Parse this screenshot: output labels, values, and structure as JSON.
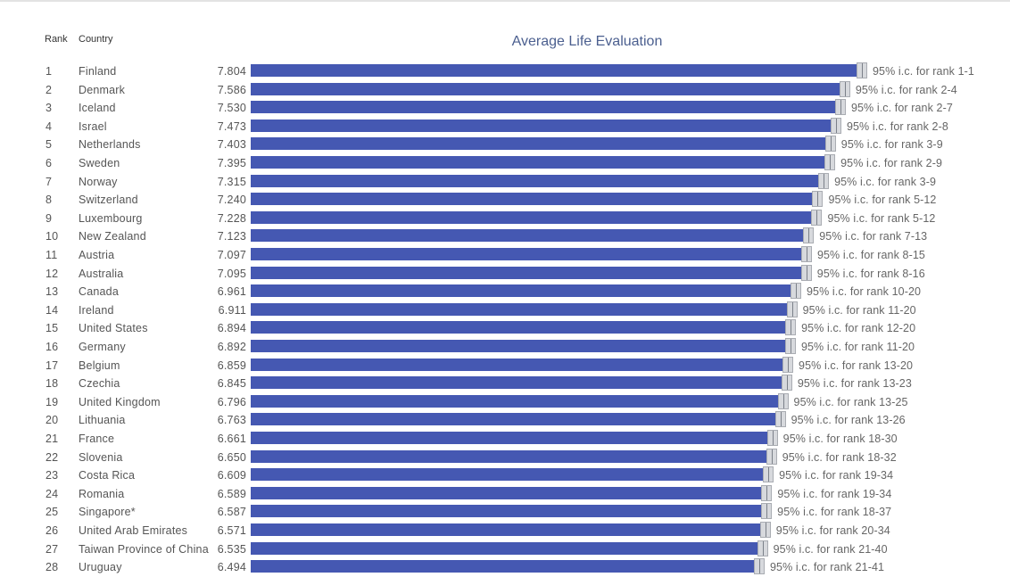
{
  "header": {
    "rank_label": "Rank",
    "country_label": "Country"
  },
  "chart_data": {
    "type": "bar",
    "orientation": "horizontal",
    "title": "Average Life Evaluation",
    "xlim": [
      0,
      7.804
    ],
    "colors": {
      "bar": "#4558b2",
      "ci_band": "#d7d9dd",
      "ci_border": "#a9acb2",
      "title": "#4b5f8f"
    },
    "rows": [
      {
        "rank": "1",
        "country": "Finland",
        "score": "7.804",
        "value": 7.804,
        "ci_label": "95% i.c. for rank 1-1"
      },
      {
        "rank": "2",
        "country": "Denmark",
        "score": "7.586",
        "value": 7.586,
        "ci_label": "95% i.c. for rank 2-4"
      },
      {
        "rank": "3",
        "country": "Iceland",
        "score": "7.530",
        "value": 7.53,
        "ci_label": "95% i.c. for rank 2-7"
      },
      {
        "rank": "4",
        "country": "Israel",
        "score": "7.473",
        "value": 7.473,
        "ci_label": "95% i.c. for rank 2-8"
      },
      {
        "rank": "5",
        "country": "Netherlands",
        "score": "7.403",
        "value": 7.403,
        "ci_label": "95% i.c. for rank 3-9"
      },
      {
        "rank": "6",
        "country": "Sweden",
        "score": "7.395",
        "value": 7.395,
        "ci_label": "95% i.c. for rank 2-9"
      },
      {
        "rank": "7",
        "country": "Norway",
        "score": "7.315",
        "value": 7.315,
        "ci_label": "95% i.c. for rank 3-9"
      },
      {
        "rank": "8",
        "country": "Switzerland",
        "score": "7.240",
        "value": 7.24,
        "ci_label": "95% i.c. for rank 5-12"
      },
      {
        "rank": "9",
        "country": "Luxembourg",
        "score": "7.228",
        "value": 7.228,
        "ci_label": "95% i.c. for rank 5-12"
      },
      {
        "rank": "10",
        "country": "New Zealand",
        "score": "7.123",
        "value": 7.123,
        "ci_label": "95% i.c. for rank 7-13"
      },
      {
        "rank": "11",
        "country": "Austria",
        "score": "7.097",
        "value": 7.097,
        "ci_label": "95% i.c. for rank 8-15"
      },
      {
        "rank": "12",
        "country": "Australia",
        "score": "7.095",
        "value": 7.095,
        "ci_label": "95% i.c. for rank 8-16"
      },
      {
        "rank": "13",
        "country": "Canada",
        "score": "6.961",
        "value": 6.961,
        "ci_label": "95% i.c. for rank 10-20"
      },
      {
        "rank": "14",
        "country": "Ireland",
        "score": "6.911",
        "value": 6.911,
        "ci_label": "95% i.c. for rank 11-20"
      },
      {
        "rank": "15",
        "country": "United States",
        "score": "6.894",
        "value": 6.894,
        "ci_label": "95% i.c. for rank 12-20"
      },
      {
        "rank": "16",
        "country": "Germany",
        "score": "6.892",
        "value": 6.892,
        "ci_label": "95% i.c. for rank 11-20"
      },
      {
        "rank": "17",
        "country": "Belgium",
        "score": "6.859",
        "value": 6.859,
        "ci_label": "95% i.c. for rank 13-20"
      },
      {
        "rank": "18",
        "country": "Czechia",
        "score": "6.845",
        "value": 6.845,
        "ci_label": "95% i.c. for rank 13-23"
      },
      {
        "rank": "19",
        "country": "United Kingdom",
        "score": "6.796",
        "value": 6.796,
        "ci_label": "95% i.c. for rank 13-25"
      },
      {
        "rank": "20",
        "country": "Lithuania",
        "score": "6.763",
        "value": 6.763,
        "ci_label": "95% i.c. for rank 13-26"
      },
      {
        "rank": "21",
        "country": "France",
        "score": "6.661",
        "value": 6.661,
        "ci_label": "95% i.c. for rank 18-30"
      },
      {
        "rank": "22",
        "country": "Slovenia",
        "score": "6.650",
        "value": 6.65,
        "ci_label": "95% i.c. for rank 18-32"
      },
      {
        "rank": "23",
        "country": "Costa Rica",
        "score": "6.609",
        "value": 6.609,
        "ci_label": "95% i.c. for rank 19-34"
      },
      {
        "rank": "24",
        "country": "Romania",
        "score": "6.589",
        "value": 6.589,
        "ci_label": "95% i.c. for rank 19-34"
      },
      {
        "rank": "25",
        "country": "Singapore*",
        "score": "6.587",
        "value": 6.587,
        "ci_label": "95% i.c. for rank 18-37"
      },
      {
        "rank": "26",
        "country": "United Arab Emirates",
        "score": "6.571",
        "value": 6.571,
        "ci_label": "95% i.c. for rank 20-34"
      },
      {
        "rank": "27",
        "country": "Taiwan Province of China",
        "score": "6.535",
        "value": 6.535,
        "ci_label": "95% i.c. for rank 21-40"
      },
      {
        "rank": "28",
        "country": "Uruguay",
        "score": "6.494",
        "value": 6.494,
        "ci_label": "95% i.c. for rank 21-41"
      }
    ]
  }
}
